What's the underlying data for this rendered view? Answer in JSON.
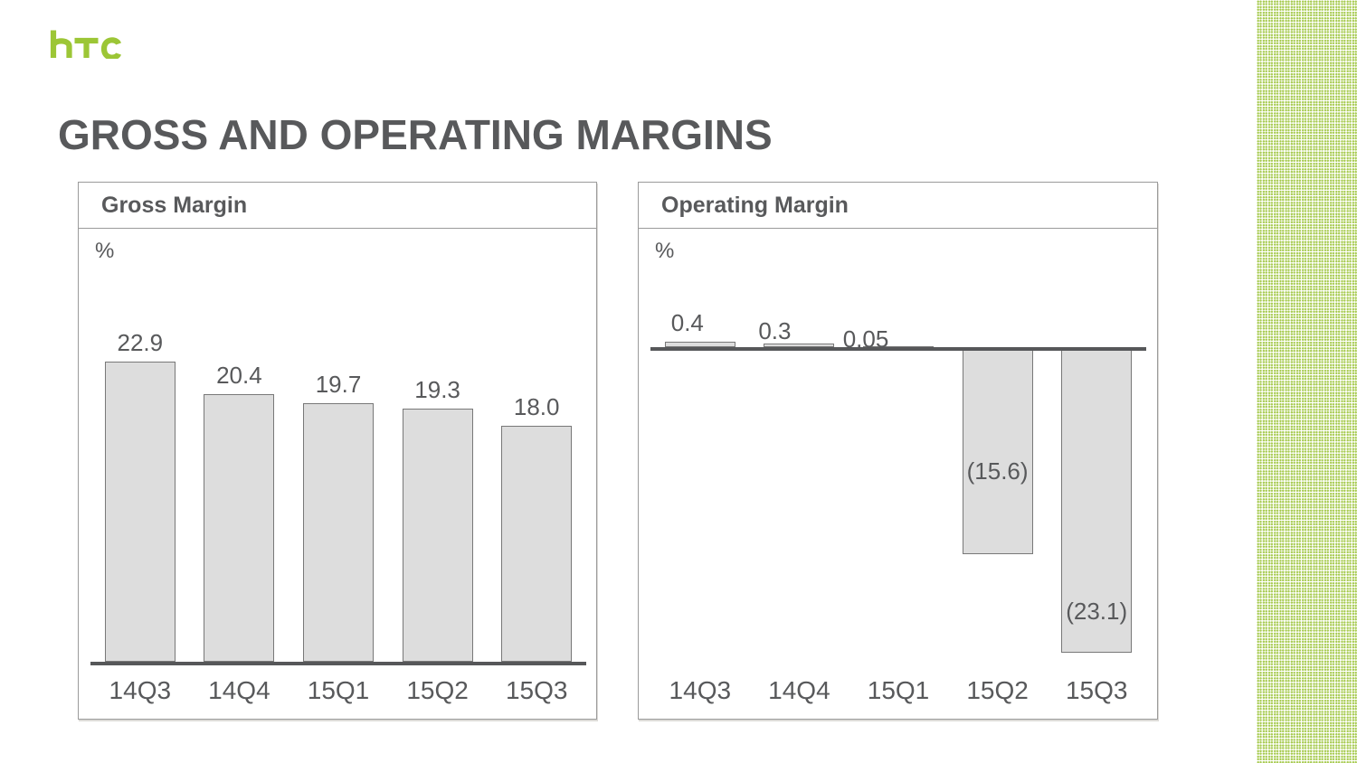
{
  "brand": {
    "name": "htc",
    "logo_color": "#9CC636"
  },
  "title": "GROSS AND OPERATING MARGINS",
  "text_color": "#58595B",
  "chart_data": [
    {
      "type": "bar",
      "title": "Gross Margin",
      "ylabel": "%",
      "categories": [
        "14Q3",
        "14Q4",
        "15Q1",
        "15Q2",
        "15Q3"
      ],
      "values": [
        22.9,
        20.4,
        19.7,
        19.3,
        18.0
      ],
      "value_labels": [
        "22.9",
        "20.4",
        "19.7",
        "19.3",
        "18.0"
      ],
      "ylim": [
        0,
        25
      ],
      "grid": false,
      "legend": "none",
      "bar_fill": "#DDDDDD",
      "bar_border": "#787878"
    },
    {
      "type": "bar",
      "title": "Operating Margin",
      "ylabel": "%",
      "categories": [
        "14Q3",
        "14Q4",
        "15Q1",
        "15Q2",
        "15Q3"
      ],
      "values": [
        0.4,
        0.3,
        0.05,
        -15.6,
        -23.1
      ],
      "value_labels": [
        "0.4",
        "0.3",
        "0.05",
        "(15.6)",
        "(23.1)"
      ],
      "ylim": [
        -25,
        2
      ],
      "grid": false,
      "legend": "none",
      "negative_label_style": "parentheses",
      "bar_fill": "#DDDDDD",
      "bar_border": "#787878"
    }
  ]
}
